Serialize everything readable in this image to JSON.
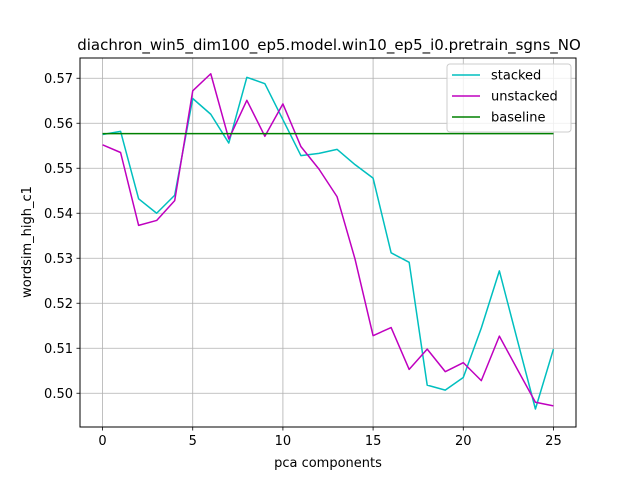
{
  "chart_data": {
    "type": "line",
    "title": "diachron_win5_dim100_ep5.model.win10_ep5_i0.pretrain_sgns_NO",
    "xlabel": "pca components",
    "ylabel": "wordsim_high_c1",
    "xlim": [
      -1.25,
      26.25
    ],
    "ylim": [
      0.4925,
      0.5745
    ],
    "xticks": [
      0,
      5,
      10,
      15,
      20,
      25
    ],
    "yticks": [
      0.5,
      0.51,
      0.52,
      0.53,
      0.54,
      0.55,
      0.56,
      0.57
    ],
    "ytick_labels": [
      "0.50",
      "0.51",
      "0.52",
      "0.53",
      "0.54",
      "0.55",
      "0.56",
      "0.57"
    ],
    "grid": true,
    "legend_position": "top-right",
    "x": [
      0,
      1,
      2,
      3,
      4,
      5,
      6,
      7,
      8,
      9,
      10,
      11,
      12,
      13,
      14,
      15,
      16,
      17,
      18,
      19,
      20,
      21,
      22,
      23,
      24,
      25
    ],
    "series": [
      {
        "name": "stacked",
        "color": "#00bfbf",
        "values": [
          0.5575,
          0.5582,
          0.5432,
          0.54,
          0.544,
          0.5655,
          0.562,
          0.5556,
          0.5702,
          0.5688,
          0.5608,
          0.5528,
          0.5533,
          0.5542,
          0.5508,
          0.5478,
          0.5312,
          0.5291,
          0.5018,
          0.5007,
          0.5035,
          0.5145,
          0.5272,
          0.5118,
          0.4965,
          0.5098
        ]
      },
      {
        "name": "unstacked",
        "color": "#bf00bf",
        "values": [
          0.5552,
          0.5535,
          0.5373,
          0.5384,
          0.5428,
          0.5672,
          0.571,
          0.5565,
          0.5651,
          0.5571,
          0.5643,
          0.5548,
          0.5498,
          0.5437,
          0.5298,
          0.5128,
          0.5146,
          0.5053,
          0.5098,
          0.5048,
          0.5068,
          0.5028,
          0.5127,
          0.5053,
          0.498,
          0.4972
        ]
      },
      {
        "name": "baseline",
        "color": "#008000",
        "values": [
          0.5577,
          0.5577,
          0.5577,
          0.5577,
          0.5577,
          0.5577,
          0.5577,
          0.5577,
          0.5577,
          0.5577,
          0.5577,
          0.5577,
          0.5577,
          0.5577,
          0.5577,
          0.5577,
          0.5577,
          0.5577,
          0.5577,
          0.5577,
          0.5577,
          0.5577,
          0.5577,
          0.5577,
          0.5577,
          0.5577
        ]
      }
    ]
  }
}
